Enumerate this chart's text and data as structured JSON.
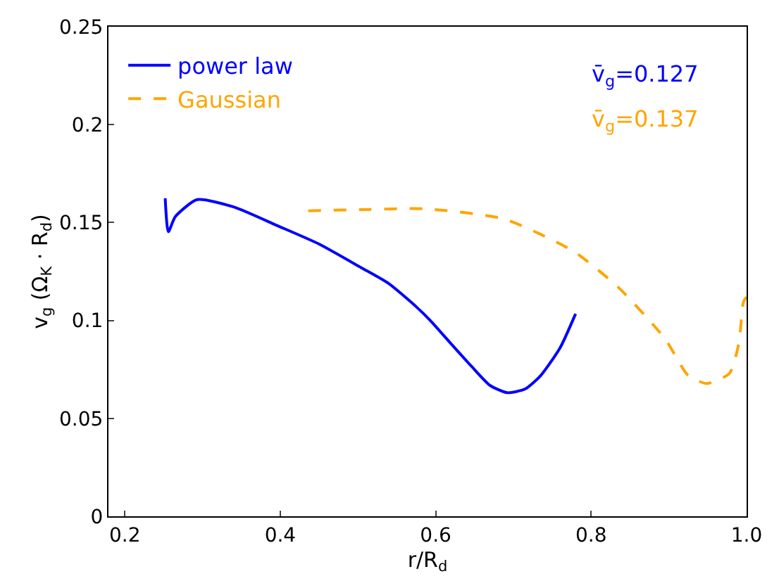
{
  "chart_data": {
    "type": "line",
    "xlabel": "r/R$_{d}$",
    "ylabel": "v$_{g}$ (Ω$_{K}$ · R$_{d}$)",
    "xlim": [
      0.179,
      1.0
    ],
    "xticks": [
      {
        "value": 0.2,
        "label": "0.2"
      },
      {
        "value": 0.4,
        "label": "0.4"
      },
      {
        "value": 0.6,
        "label": "0.6"
      },
      {
        "value": 0.8,
        "label": "0.8"
      },
      {
        "value": 1.0,
        "label": "1.0"
      }
    ],
    "ylim": [
      0,
      0.25
    ],
    "yticks": [
      0,
      0.05,
      0.1,
      0.15,
      0.2,
      0.25
    ],
    "legend": "top left",
    "series": [
      {
        "name": "power law",
        "color": "#0000ff",
        "line_style": "solid",
        "x": [
          0.252,
          0.256,
          0.265,
          0.293,
          0.34,
          0.397,
          0.45,
          0.504,
          0.539,
          0.575,
          0.593,
          0.62,
          0.646,
          0.67,
          0.692,
          0.715,
          0.735,
          0.76,
          0.78
        ],
        "values": [
          0.1624,
          0.1453,
          0.153,
          0.1617,
          0.158,
          0.1483,
          0.139,
          0.127,
          0.119,
          0.107,
          0.1,
          0.088,
          0.0766,
          0.0668,
          0.0631,
          0.065,
          0.0718,
          0.086,
          0.1034
        ]
      },
      {
        "name": "Gaussian",
        "color": "#ffa500",
        "line_style": "dashed",
        "x": [
          0.436,
          0.504,
          0.587,
          0.688,
          0.777,
          0.836,
          0.895,
          0.925,
          0.949,
          0.978,
          0.99,
          0.996,
          1.0
        ],
        "values": [
          0.156,
          0.1566,
          0.157,
          0.1518,
          0.1354,
          0.1165,
          0.0907,
          0.0718,
          0.0678,
          0.073,
          0.0883,
          0.1095,
          0.112
        ]
      }
    ],
    "annotations": [
      "v̄$_{g}$=0.127",
      "v̄$_{g}$=0.137"
    ]
  }
}
